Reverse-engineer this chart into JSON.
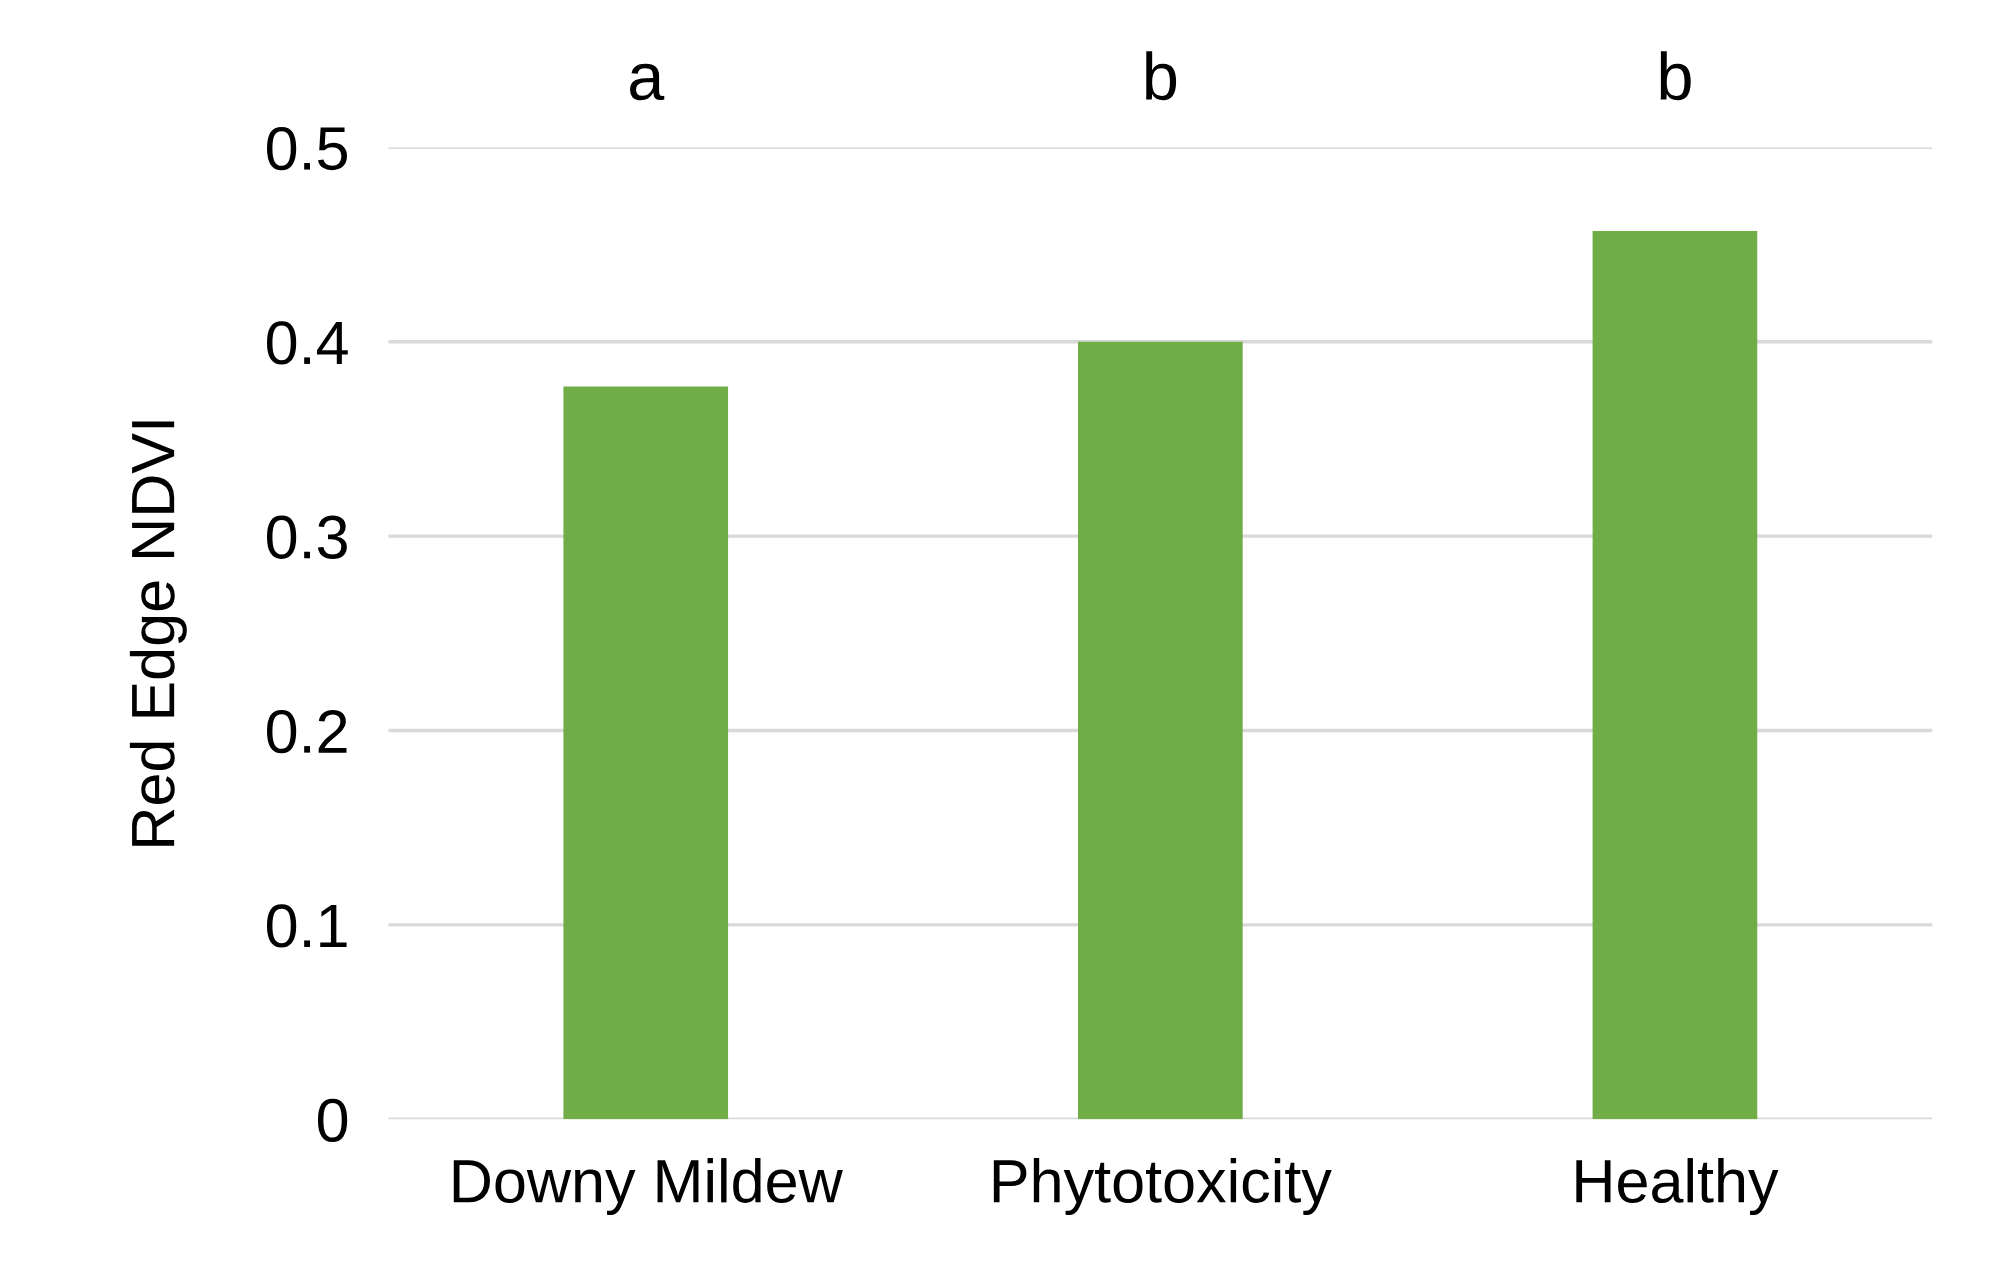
{
  "chart_data": {
    "type": "bar",
    "ylabel": "Red Edge NDVI",
    "categories": [
      "Downy Mildew",
      "Phytotoxicity",
      "Healthy"
    ],
    "values": [
      0.377,
      0.4,
      0.457
    ],
    "color": "#70ad47",
    "ylim": [
      0,
      0.5
    ],
    "yticks": [
      0,
      0.1,
      0.2,
      0.3,
      0.4,
      0.5
    ],
    "grid": "y",
    "annotations": [
      "a",
      "b",
      "b"
    ]
  }
}
